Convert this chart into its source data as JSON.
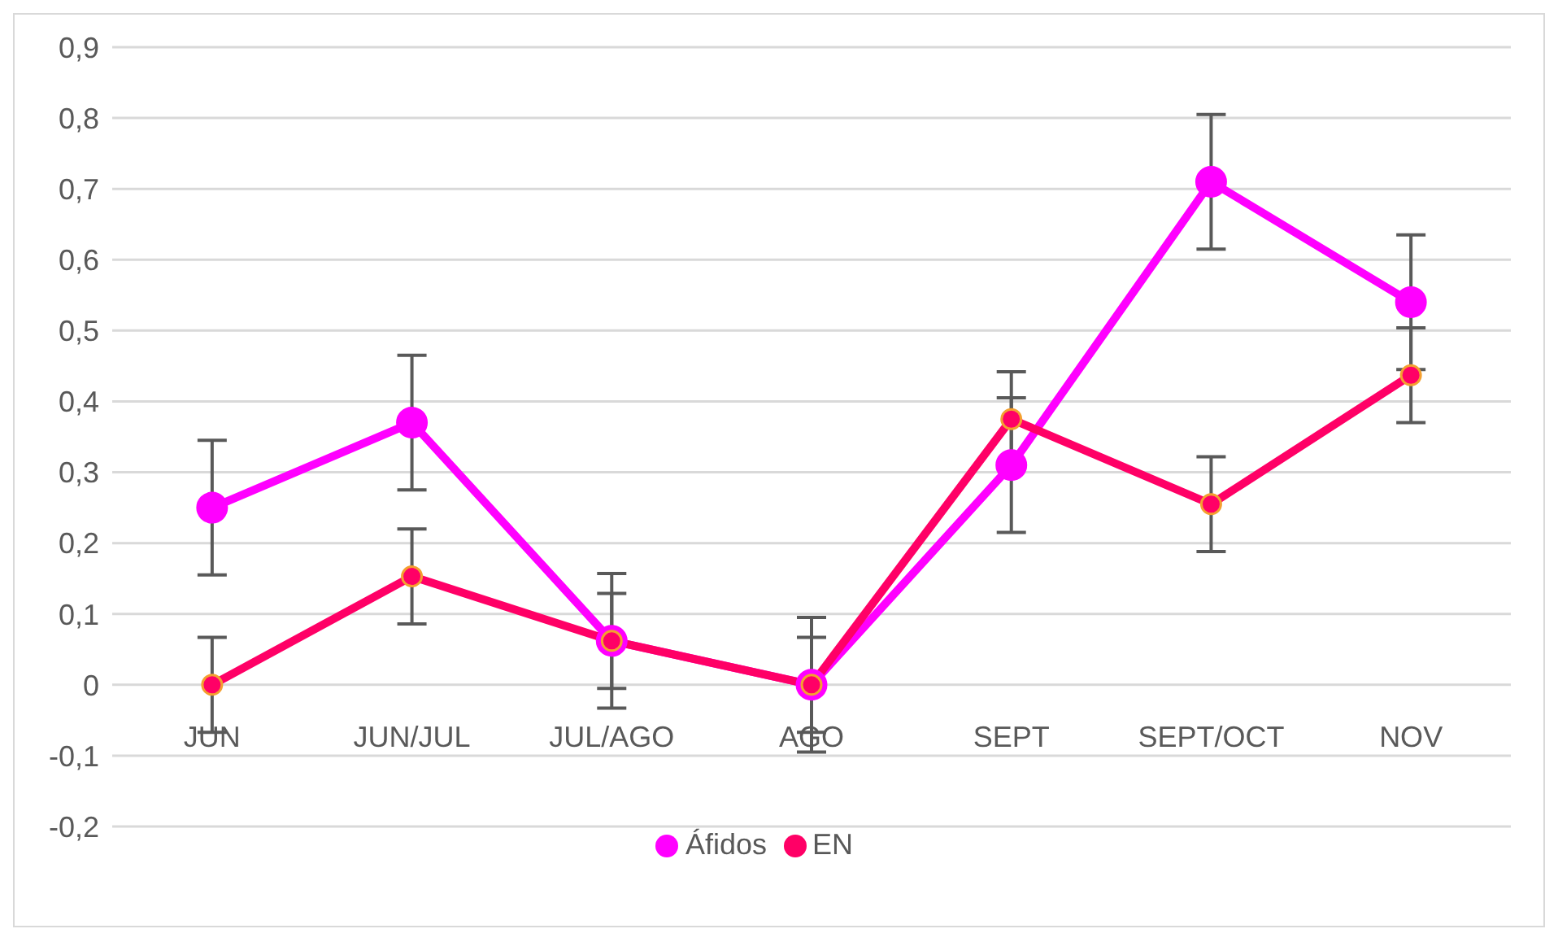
{
  "chart_data": {
    "type": "line",
    "categories": [
      "JUN",
      "JUN/JUL",
      "JUL/AGO",
      "AGO",
      "SEPT",
      "SEPT/OCT",
      "NOV"
    ],
    "series": [
      {
        "name": "Áfidos",
        "color": "#ff00ff",
        "values": [
          0.25,
          0.37,
          0.062,
          0,
          0.31,
          0.71,
          0.54
        ],
        "errors": [
          0.095,
          0.095,
          0.095,
          0.095,
          0.095,
          0.095,
          0.095
        ]
      },
      {
        "name": "EN",
        "color": "#ff0066",
        "values": [
          0,
          0.153,
          0.062,
          0,
          0.375,
          0.255,
          0.437
        ],
        "errors": [
          0.067,
          0.067,
          0.067,
          0.067,
          0.067,
          0.067,
          0.067
        ]
      }
    ],
    "ylim": [
      -0.2,
      0.9
    ],
    "yticks": [
      {
        "value": -0.2,
        "label": "-0,2"
      },
      {
        "value": -0.1,
        "label": "-0,1"
      },
      0,
      {
        "value": 0.1,
        "label": "0,1"
      },
      {
        "value": 0.2,
        "label": "0,2"
      },
      {
        "value": 0.3,
        "label": "0,3"
      },
      {
        "value": 0.4,
        "label": "0,4"
      },
      {
        "value": 0.5,
        "label": "0,5"
      },
      {
        "value": 0.6,
        "label": "0,6"
      },
      {
        "value": 0.7,
        "label": "0,7"
      },
      {
        "value": 0.8,
        "label": "0,8"
      },
      {
        "value": 0.9,
        "label": "0,9"
      }
    ],
    "grid": "y",
    "legend": "bottom",
    "marker": "circle",
    "line_style": "solid"
  }
}
